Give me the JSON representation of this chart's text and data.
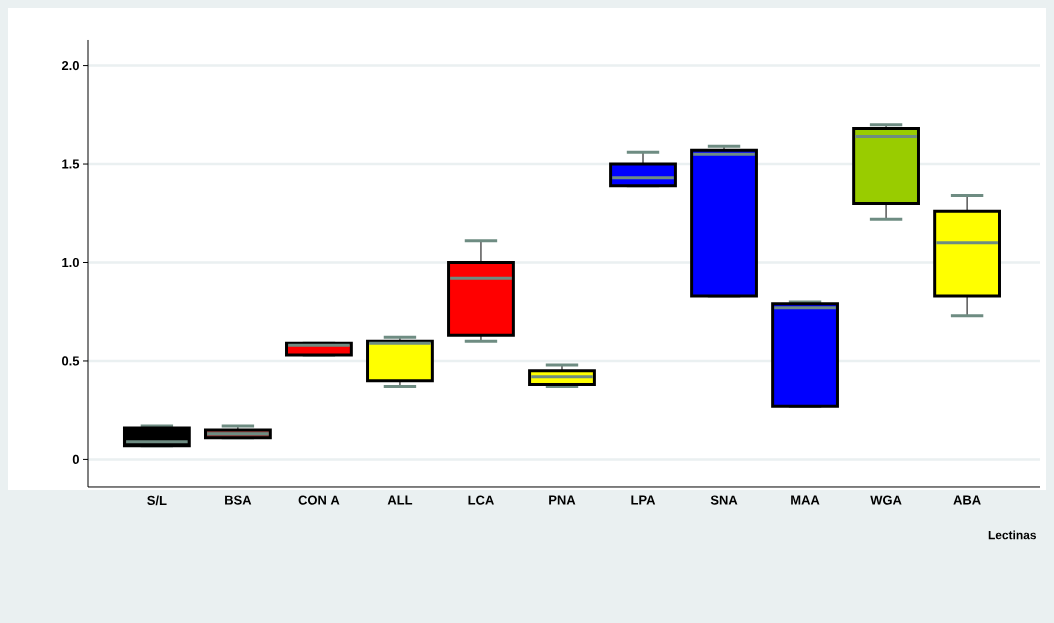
{
  "chart_data": {
    "type": "box",
    "xlabel": "Lectinas",
    "categories": [
      "S/L",
      "BSA",
      "CON A",
      "ALL",
      "LCA",
      "PNA",
      "LPA",
      "SNA",
      "MAA",
      "WGA",
      "ABA"
    ],
    "boxes": [
      {
        "low": 0.07,
        "q1": 0.07,
        "median": 0.09,
        "q3": 0.16,
        "high": 0.17
      },
      {
        "low": 0.11,
        "q1": 0.11,
        "median": 0.13,
        "q3": 0.15,
        "high": 0.17
      },
      {
        "low": 0.53,
        "q1": 0.53,
        "median": 0.58,
        "q3": 0.59,
        "high": 0.59
      },
      {
        "low": 0.37,
        "q1": 0.4,
        "median": 0.59,
        "q3": 0.6,
        "high": 0.62
      },
      {
        "low": 0.6,
        "q1": 0.63,
        "median": 0.92,
        "q3": 1.0,
        "high": 1.11
      },
      {
        "low": 0.37,
        "q1": 0.38,
        "median": 0.42,
        "q3": 0.45,
        "high": 0.48
      },
      {
        "low": 1.39,
        "q1": 1.39,
        "median": 1.43,
        "q3": 1.5,
        "high": 1.56
      },
      {
        "low": 0.83,
        "q1": 0.83,
        "median": 1.55,
        "q3": 1.57,
        "high": 1.59
      },
      {
        "low": 0.27,
        "q1": 0.27,
        "median": 0.77,
        "q3": 0.79,
        "high": 0.8
      },
      {
        "low": 1.22,
        "q1": 1.3,
        "median": 1.64,
        "q3": 1.68,
        "high": 1.7
      },
      {
        "low": 0.73,
        "q1": 0.83,
        "median": 1.1,
        "q3": 1.26,
        "high": 1.34
      }
    ],
    "colors": [
      "#000000",
      "#8b3a3a",
      "#ff0000",
      "#ffff00",
      "#ff0000",
      "#ffff00",
      "#0000ff",
      "#0000ff",
      "#0000ff",
      "#99cc00",
      "#ffff00"
    ],
    "ylim": [
      -0.14,
      2.13
    ],
    "yticks": [
      0,
      0.5,
      {
        "value": 1.0,
        "label": "1.0"
      },
      1.5,
      {
        "value": 2.0,
        "label": "2.0"
      }
    ],
    "grid": "y"
  }
}
